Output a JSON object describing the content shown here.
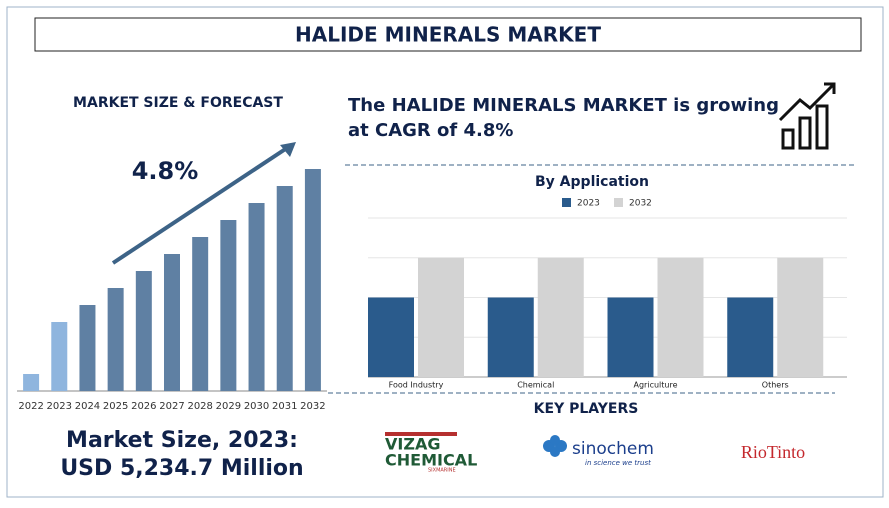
{
  "title": "HALIDE MINERALS MARKET",
  "headline": [
    "The HALIDE MINERALS MARKET is growing",
    "at CAGR of 4.8%"
  ],
  "market_size": [
    "Market Size, 2023:",
    "USD 5,234.7 Million"
  ],
  "key_players": {
    "title": "KEY PLAYERS",
    "players": [
      {
        "name": [
          "VIZAG",
          "CHEMICAL"
        ],
        "tagline": "SIXMARINE"
      },
      {
        "name": [
          "sinochem"
        ],
        "tagline": "in science we trust"
      },
      {
        "name": [
          "RioTinto"
        ]
      }
    ]
  },
  "chart_data": [
    {
      "type": "bar",
      "title": "MARKET SIZE & FORECAST",
      "annotation": "4.8%",
      "categories": [
        "2022",
        "2023",
        "2024",
        "2025",
        "2026",
        "2027",
        "2028",
        "2029",
        "2030",
        "2031",
        "2032"
      ],
      "values": [
        17,
        69,
        86,
        103,
        120,
        137,
        154,
        171,
        188,
        205,
        222
      ],
      "colors": [
        "#8fb5de",
        "#8fb5de",
        "#5f80a3",
        "#5f80a3",
        "#5f80a3",
        "#5f80a3",
        "#5f80a3",
        "#5f80a3",
        "#5f80a3",
        "#5f80a3",
        "#5f80a3"
      ]
    },
    {
      "type": "grouped_bar",
      "title": "By Application",
      "categories": [
        "Food Industry",
        "Chemical",
        "Agriculture",
        "Others"
      ],
      "series": [
        {
          "name": "2023",
          "color": "#2a5b8c",
          "values": [
            2,
            2,
            2,
            2
          ]
        },
        {
          "name": "2032",
          "color": "#d3d3d3",
          "values": [
            3,
            3,
            3,
            3
          ]
        }
      ],
      "ylim": [
        0,
        4
      ],
      "yticks": [
        0,
        1,
        2,
        3,
        4
      ],
      "grid": true
    }
  ]
}
